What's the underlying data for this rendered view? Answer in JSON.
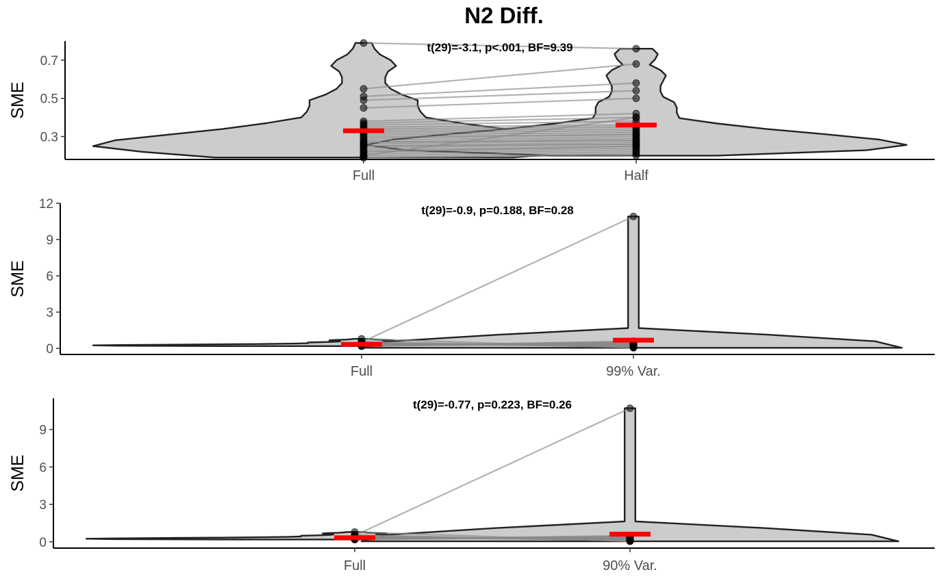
{
  "chart_data": {
    "title": "N2 Diff.",
    "colors": {
      "violin_fill": "#cccccc",
      "violin_stroke": "#222222",
      "mean": "#ff0000",
      "pair_line": "#8a8a8a",
      "point": "#000000"
    },
    "panels": [
      {
        "type": "violin",
        "annotation": "t(29)=-3.1, p<.001, BF=9.39",
        "ylabel": "SME",
        "ylim": [
          0.18,
          0.8
        ],
        "yticks": [
          0.3,
          0.5,
          0.7
        ],
        "yticklabels": [
          "0.3",
          "0.5",
          "0.7"
        ],
        "categories": [
          "Full",
          "Half"
        ],
        "means": [
          0.33,
          0.36
        ],
        "pairs": [
          [
            0.79,
            0.76
          ],
          [
            0.55,
            0.68
          ],
          [
            0.51,
            0.58
          ],
          [
            0.49,
            0.54
          ],
          [
            0.45,
            0.5
          ],
          [
            0.38,
            0.42
          ],
          [
            0.37,
            0.4
          ],
          [
            0.36,
            0.38
          ],
          [
            0.35,
            0.36
          ],
          [
            0.34,
            0.35
          ],
          [
            0.33,
            0.34
          ],
          [
            0.32,
            0.33
          ],
          [
            0.31,
            0.32
          ],
          [
            0.3,
            0.31
          ],
          [
            0.29,
            0.31
          ],
          [
            0.28,
            0.3
          ],
          [
            0.27,
            0.29
          ],
          [
            0.27,
            0.28
          ],
          [
            0.26,
            0.28
          ],
          [
            0.25,
            0.27
          ],
          [
            0.25,
            0.26
          ],
          [
            0.24,
            0.26
          ],
          [
            0.23,
            0.25
          ],
          [
            0.22,
            0.25
          ],
          [
            0.22,
            0.24
          ],
          [
            0.21,
            0.23
          ],
          [
            0.2,
            0.4
          ],
          [
            0.2,
            0.22
          ],
          [
            0.19,
            0.21
          ],
          [
            0.19,
            0.2
          ]
        ]
      },
      {
        "type": "violin",
        "annotation": "t(29)=-0.9, p=0.188, BF=0.28",
        "ylabel": "SME",
        "ylim": [
          -0.5,
          12
        ],
        "yticks": [
          0,
          3,
          6,
          9,
          12
        ],
        "yticklabels": [
          "0",
          "3",
          "6",
          "9",
          "12"
        ],
        "categories": [
          "Full",
          "99% Var."
        ],
        "means": [
          0.33,
          0.68
        ],
        "pairs": [
          [
            0.79,
            0.05
          ],
          [
            0.55,
            0.1
          ],
          [
            0.51,
            10.9
          ],
          [
            0.49,
            0.12
          ],
          [
            0.45,
            0.15
          ],
          [
            0.38,
            0.18
          ],
          [
            0.37,
            0.2
          ],
          [
            0.36,
            0.22
          ],
          [
            0.35,
            0.24
          ],
          [
            0.34,
            0.25
          ],
          [
            0.33,
            0.26
          ],
          [
            0.32,
            0.27
          ],
          [
            0.31,
            0.28
          ],
          [
            0.3,
            0.29
          ],
          [
            0.29,
            0.3
          ],
          [
            0.28,
            0.31
          ],
          [
            0.27,
            0.32
          ],
          [
            0.27,
            0.33
          ],
          [
            0.26,
            0.34
          ],
          [
            0.25,
            0.35
          ],
          [
            0.25,
            0.36
          ],
          [
            0.24,
            0.37
          ],
          [
            0.23,
            0.38
          ],
          [
            0.22,
            0.4
          ],
          [
            0.22,
            0.42
          ],
          [
            0.21,
            0.45
          ],
          [
            0.2,
            0.48
          ],
          [
            0.2,
            0.5
          ],
          [
            0.19,
            0.55
          ],
          [
            0.19,
            0.6
          ]
        ]
      },
      {
        "type": "violin",
        "annotation": "t(29)=-0.77, p=0.223, BF=0.26",
        "ylabel": "SME",
        "ylim": [
          -0.5,
          11.5
        ],
        "yticks": [
          0,
          3,
          6,
          9
        ],
        "yticklabels": [
          "0",
          "3",
          "6",
          "9"
        ],
        "categories": [
          "Full",
          "90% Var."
        ],
        "means": [
          0.33,
          0.62
        ],
        "pairs": [
          [
            0.79,
            0.04
          ],
          [
            0.55,
            0.08
          ],
          [
            0.51,
            10.7
          ],
          [
            0.49,
            0.1
          ],
          [
            0.45,
            0.12
          ],
          [
            0.38,
            0.14
          ],
          [
            0.37,
            0.16
          ],
          [
            0.36,
            0.18
          ],
          [
            0.35,
            0.2
          ],
          [
            0.34,
            0.21
          ],
          [
            0.33,
            0.22
          ],
          [
            0.32,
            0.23
          ],
          [
            0.31,
            0.24
          ],
          [
            0.3,
            0.25
          ],
          [
            0.29,
            0.26
          ],
          [
            0.28,
            0.27
          ],
          [
            0.27,
            0.28
          ],
          [
            0.27,
            0.29
          ],
          [
            0.26,
            0.3
          ],
          [
            0.25,
            0.31
          ],
          [
            0.25,
            0.32
          ],
          [
            0.24,
            0.33
          ],
          [
            0.23,
            0.34
          ],
          [
            0.22,
            0.35
          ],
          [
            0.22,
            0.36
          ],
          [
            0.21,
            0.38
          ],
          [
            0.2,
            0.4
          ],
          [
            0.2,
            0.42
          ],
          [
            0.19,
            0.45
          ],
          [
            0.19,
            0.5
          ]
        ]
      }
    ]
  }
}
